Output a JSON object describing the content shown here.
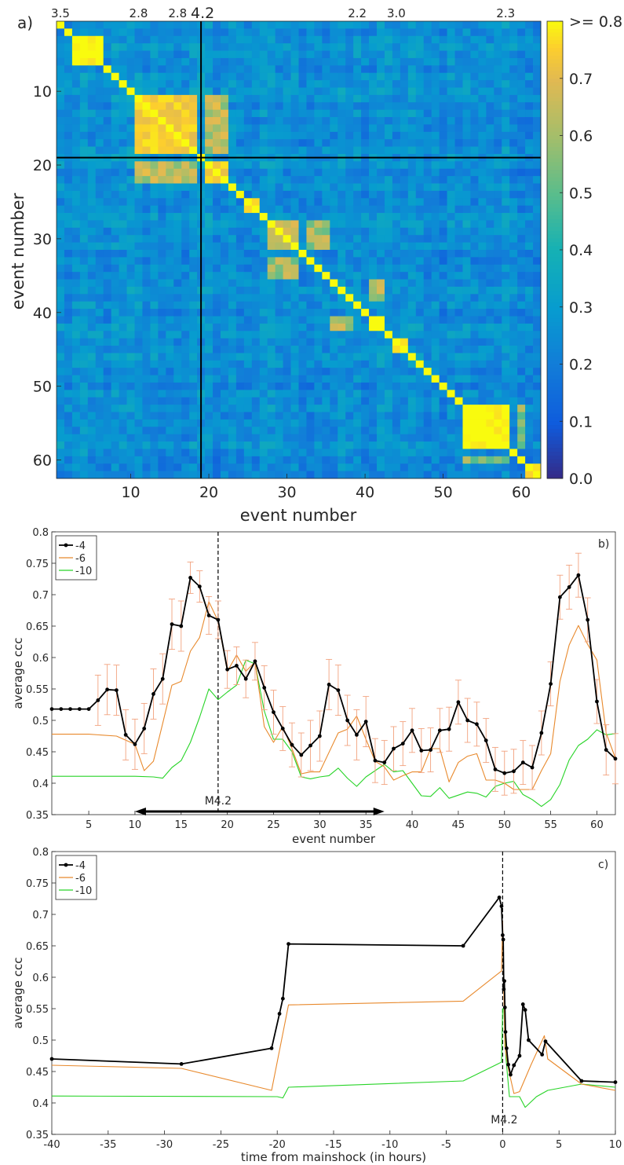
{
  "chart_data": [
    {
      "type": "heatmap",
      "panel_label": "a)",
      "xlabel": "event number",
      "ylabel": "event number",
      "xlim": [
        1,
        62
      ],
      "ylim": [
        1,
        62
      ],
      "x_ticks": [
        10,
        20,
        30,
        40,
        50,
        60
      ],
      "y_ticks": [
        10,
        20,
        30,
        40,
        50,
        60
      ],
      "colorbar": {
        "range": [
          0.0,
          0.8
        ],
        "ticks": [
          "0.0",
          "0.1",
          "0.2",
          "0.3",
          "0.4",
          "0.5",
          "0.6",
          "0.7",
          ">= 0.8"
        ],
        "colormap": "parula"
      },
      "magnitude_labels": [
        {
          "event": 1,
          "text": "3.5"
        },
        {
          "event": 11,
          "text": "2.8"
        },
        {
          "event": 16,
          "text": "2.8"
        },
        {
          "event": 19,
          "text": "4.2"
        },
        {
          "event": 39,
          "text": "2.2"
        },
        {
          "event": 44,
          "text": "3.0"
        },
        {
          "event": 58,
          "text": "2.3"
        }
      ],
      "mainshock_event": 19,
      "high_blocks": [
        {
          "start": 1,
          "end": 1,
          "value": 0.85
        },
        {
          "start": 3,
          "end": 6,
          "value": 0.85
        },
        {
          "start": 11,
          "end": 18,
          "value": 0.78
        },
        {
          "start": 20,
          "end": 22,
          "value": 0.78
        },
        {
          "start": 25,
          "end": 26,
          "value": 0.82
        },
        {
          "start": 28,
          "end": 31,
          "value": 0.7
        },
        {
          "start": 41,
          "end": 42,
          "value": 0.85
        },
        {
          "start": 44,
          "end": 45,
          "value": 0.82
        },
        {
          "start": 53,
          "end": 58,
          "value": 0.85
        },
        {
          "start": 61,
          "end": 62,
          "value": 0.82
        }
      ]
    },
    {
      "type": "line",
      "panel_label": "b)",
      "xlabel": "event number",
      "ylabel": "average ccc",
      "xlim": [
        1,
        62
      ],
      "ylim": [
        0.35,
        0.8
      ],
      "x_ticks": [
        5,
        10,
        15,
        20,
        25,
        30,
        35,
        40,
        45,
        50,
        55,
        60
      ],
      "y_ticks": [
        "0.35",
        "0.4",
        "0.45",
        "0.5",
        "0.55",
        "0.6",
        "0.65",
        "0.7",
        "0.75",
        "0.8"
      ],
      "vline": {
        "x": 19,
        "label": "M4.2"
      },
      "arrow": {
        "from": 10,
        "to": 37,
        "y": 0.355
      },
      "legend_position": "top-left",
      "series": [
        {
          "name": "-4",
          "color": "#000000",
          "x": [
            1,
            2,
            3,
            4,
            5,
            6,
            7,
            8,
            9,
            10,
            11,
            12,
            13,
            14,
            15,
            16,
            17,
            18,
            19,
            20,
            21,
            22,
            23,
            24,
            25,
            26,
            27,
            28,
            29,
            30,
            31,
            32,
            33,
            34,
            35,
            36,
            37,
            38,
            39,
            40,
            41,
            42,
            43,
            44,
            45,
            46,
            47,
            48,
            49,
            50,
            51,
            52,
            53,
            54,
            55,
            56,
            57,
            58,
            59,
            60,
            61,
            62
          ],
          "y": [
            0.518,
            0.518,
            0.518,
            0.518,
            0.518,
            0.532,
            0.549,
            0.548,
            0.477,
            0.462,
            0.487,
            0.542,
            0.566,
            0.653,
            0.65,
            0.727,
            0.713,
            0.667,
            0.66,
            0.581,
            0.587,
            0.566,
            0.594,
            0.552,
            0.513,
            0.487,
            0.461,
            0.445,
            0.46,
            0.475,
            0.557,
            0.548,
            0.5,
            0.477,
            0.498,
            0.436,
            0.433,
            0.455,
            0.463,
            0.484,
            0.452,
            0.453,
            0.484,
            0.486,
            0.529,
            0.5,
            0.494,
            0.468,
            0.422,
            0.416,
            0.419,
            0.433,
            0.425,
            0.48,
            0.558,
            0.696,
            0.712,
            0.731,
            0.66,
            0.53,
            0.453,
            0.439
          ],
          "err": [
            0,
            0,
            0,
            0,
            0,
            0.04,
            0.04,
            0.04,
            0.04,
            0.04,
            0.04,
            0.04,
            0.04,
            0.04,
            0.04,
            0.025,
            0.025,
            0.03,
            0.03,
            0.03,
            0.03,
            0.03,
            0.03,
            0.035,
            0.035,
            0.035,
            0.035,
            0.035,
            0.04,
            0.04,
            0.04,
            0.04,
            0.04,
            0.04,
            0.04,
            0.035,
            0.035,
            0.035,
            0.035,
            0.035,
            0.035,
            0.035,
            0.035,
            0.035,
            0.035,
            0.035,
            0.035,
            0.035,
            0.035,
            0.035,
            0.035,
            0.035,
            0.035,
            0.035,
            0.035,
            0.035,
            0.035,
            0.035,
            0.035,
            0.035,
            0.04,
            0.04
          ]
        },
        {
          "name": "-6",
          "color": "#e8892c",
          "x": [
            1,
            5,
            8,
            10,
            11,
            12,
            13,
            14,
            15,
            16,
            17,
            18,
            19,
            20,
            21,
            22,
            23,
            24,
            25,
            26,
            27,
            28,
            29,
            30,
            31,
            32,
            33,
            34,
            35,
            36,
            37,
            38,
            39,
            40,
            41,
            42,
            43,
            44,
            45,
            46,
            47,
            48,
            49,
            50,
            51,
            52,
            53,
            54,
            55,
            56,
            57,
            58,
            59,
            60,
            61,
            62
          ],
          "y": [
            0.478,
            0.478,
            0.475,
            0.462,
            0.42,
            0.435,
            0.495,
            0.556,
            0.562,
            0.61,
            0.632,
            0.689,
            0.658,
            0.578,
            0.604,
            0.578,
            0.593,
            0.49,
            0.465,
            0.49,
            0.455,
            0.415,
            0.418,
            0.418,
            0.449,
            0.48,
            0.486,
            0.507,
            0.47,
            0.435,
            0.426,
            0.405,
            0.412,
            0.418,
            0.418,
            0.455,
            0.455,
            0.402,
            0.433,
            0.443,
            0.447,
            0.405,
            0.405,
            0.4,
            0.39,
            0.39,
            0.39,
            0.42,
            0.447,
            0.562,
            0.62,
            0.651,
            0.621,
            0.596,
            0.48,
            0.44
          ]
        },
        {
          "name": "-10",
          "color": "#27d427",
          "x": [
            1,
            5,
            10,
            12,
            13,
            14,
            15,
            16,
            17,
            18,
            19,
            20,
            21,
            22,
            23,
            24,
            25,
            26,
            27,
            28,
            29,
            30,
            31,
            32,
            33,
            34,
            35,
            36,
            37,
            38,
            39,
            40,
            41,
            42,
            43,
            44,
            45,
            46,
            47,
            48,
            49,
            50,
            51,
            52,
            53,
            54,
            55,
            56,
            57,
            58,
            59,
            60,
            61,
            62
          ],
          "y": [
            0.411,
            0.411,
            0.411,
            0.41,
            0.408,
            0.425,
            0.436,
            0.465,
            0.505,
            0.55,
            0.533,
            0.545,
            0.556,
            0.596,
            0.59,
            0.515,
            0.47,
            0.47,
            0.45,
            0.41,
            0.407,
            0.41,
            0.412,
            0.424,
            0.408,
            0.395,
            0.41,
            0.42,
            0.43,
            0.418,
            0.42,
            0.4,
            0.38,
            0.379,
            0.393,
            0.376,
            0.381,
            0.386,
            0.384,
            0.378,
            0.395,
            0.4,
            0.403,
            0.382,
            0.374,
            0.363,
            0.374,
            0.398,
            0.437,
            0.46,
            0.47,
            0.485,
            0.477,
            0.479
          ]
        }
      ]
    },
    {
      "type": "line",
      "panel_label": "c)",
      "xlabel": "time from mainshock (in hours)",
      "ylabel": "average ccc",
      "xlim": [
        -40,
        10
      ],
      "ylim": [
        0.35,
        0.8
      ],
      "x_ticks": [
        -40,
        -35,
        -30,
        -25,
        -20,
        -15,
        -10,
        -5,
        0,
        5,
        10
      ],
      "y_ticks": [
        "0.35",
        "0.4",
        "0.45",
        "0.5",
        "0.55",
        "0.6",
        "0.65",
        "0.7",
        "0.75",
        "0.8"
      ],
      "vline": {
        "x": 0,
        "label": "M4.2"
      },
      "legend_position": "top-left",
      "series": [
        {
          "name": "-4",
          "color": "#000000",
          "x": [
            -40,
            -28.5,
            -20.5,
            -19.8,
            -19.5,
            -19.0,
            -3.5,
            -0.3,
            -0.1,
            0,
            0.05,
            0.1,
            0.15,
            0.2,
            0.25,
            0.35,
            0.5,
            0.7,
            1.0,
            1.5,
            1.8,
            2.0,
            2.3,
            3.5,
            3.8,
            7.0,
            10
          ],
          "y": [
            0.47,
            0.462,
            0.487,
            0.542,
            0.566,
            0.653,
            0.65,
            0.727,
            0.713,
            0.667,
            0.66,
            0.581,
            0.594,
            0.552,
            0.513,
            0.487,
            0.461,
            0.445,
            0.46,
            0.475,
            0.557,
            0.548,
            0.5,
            0.477,
            0.498,
            0.435,
            0.433
          ]
        },
        {
          "name": "-6",
          "color": "#e8892c",
          "x": [
            -40,
            -28.5,
            -20.5,
            -19.0,
            -3.5,
            -0.1,
            0,
            0.1,
            0.2,
            0.5,
            1.0,
            1.5,
            2.5,
            3.7,
            4.0,
            7.0,
            10
          ],
          "y": [
            0.46,
            0.455,
            0.42,
            0.556,
            0.562,
            0.61,
            0.689,
            0.58,
            0.49,
            0.455,
            0.415,
            0.418,
            0.46,
            0.507,
            0.47,
            0.43,
            0.42
          ]
        },
        {
          "name": "-10",
          "color": "#27d427",
          "x": [
            -40,
            -20,
            -19.5,
            -19.0,
            -3.5,
            -0.1,
            0,
            0.1,
            0.3,
            0.6,
            1.0,
            1.5,
            2.0,
            3.0,
            4.0,
            7.0,
            10
          ],
          "y": [
            0.411,
            0.41,
            0.408,
            0.425,
            0.435,
            0.465,
            0.55,
            0.55,
            0.47,
            0.41,
            0.41,
            0.41,
            0.393,
            0.41,
            0.42,
            0.43,
            0.425
          ]
        }
      ]
    }
  ]
}
